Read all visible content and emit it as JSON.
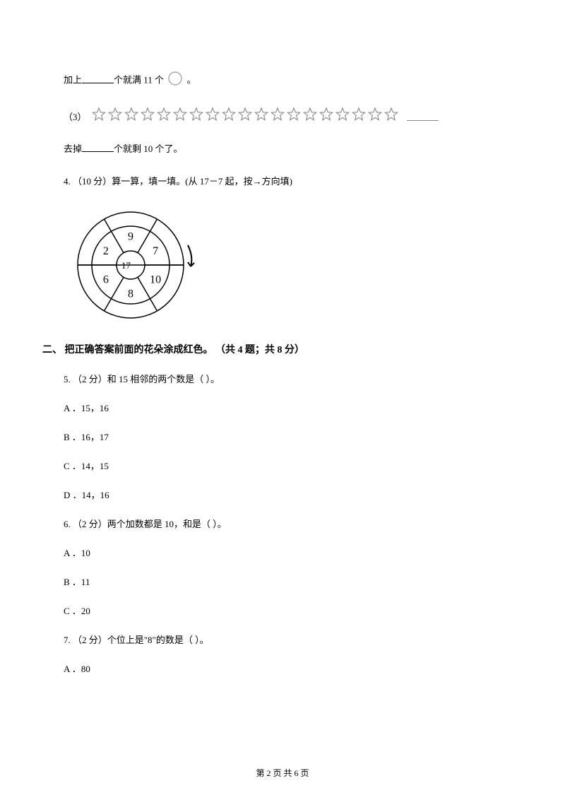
{
  "q3_part2": {
    "prefix": "加上",
    "suffix1": "个就满 11 个",
    "suffix2": " 。"
  },
  "q3_part3": {
    "label": "（3）",
    "star_count": 19,
    "star_color": "#888888",
    "line2_prefix": "去掉",
    "line2_suffix": "个就剩 10 个了。"
  },
  "q4": {
    "text": "4. （10 分）算一算，填一填。(从 17－7 起，按→方向填)",
    "wheel": {
      "center": "17－",
      "sectors": [
        "9",
        "7",
        "10",
        "8",
        "6",
        "2"
      ],
      "outer_radius": 75,
      "middle_radius": 55,
      "inner_radius": 20,
      "stroke": "#000000"
    }
  },
  "section2": {
    "header": "二、 把正确答案前面的花朵涂成红色。 （共 4 题；共 8 分）"
  },
  "q5": {
    "text": "5. （2 分）和 15 相邻的两个数是（    ）。",
    "options": {
      "A": "A ．15，16",
      "B": "B ．16，17",
      "C": "C ．14，15",
      "D": "D ．14，16"
    }
  },
  "q6": {
    "text": "6. （2 分）两个加数都是 10，和是（    ）。",
    "options": {
      "A": "A ．10",
      "B": "B ．11",
      "C": "C ．20"
    }
  },
  "q7": {
    "text": "7. （2 分）个位上是\"8\"的数是（    ）。",
    "options": {
      "A": "A ．80"
    }
  },
  "footer": {
    "text": "第 2 页 共 6 页"
  },
  "colors": {
    "text": "#000000",
    "background": "#ffffff",
    "circle_stroke": "#aaaaaa"
  }
}
